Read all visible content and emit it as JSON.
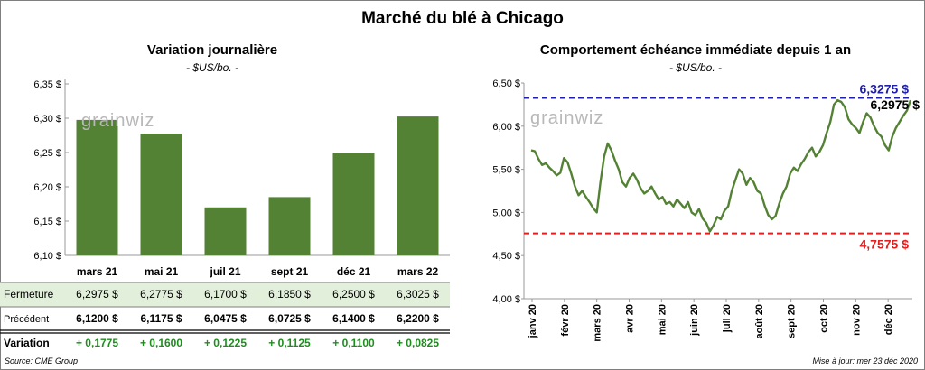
{
  "title": "Marché du blé à Chicago",
  "source": "Source: CME Group",
  "updated": "Mise à jour: mer 23 déc 2020",
  "watermark": "grainwiz",
  "chart_data": [
    {
      "type": "bar",
      "title": "Variation journalière",
      "unit": "- $US/bo. -",
      "categories": [
        "mars 21",
        "mai 21",
        "juil 21",
        "sept 21",
        "déc 21",
        "mars 22"
      ],
      "values": [
        6.2975,
        6.2775,
        6.17,
        6.185,
        6.25,
        6.3025
      ],
      "ylim": [
        6.1,
        6.35
      ],
      "yticks": [
        "6,10 $",
        "6,15 $",
        "6,20 $",
        "6,25 $",
        "6,30 $",
        "6,35 $"
      ],
      "bar_color": "#548235",
      "table": {
        "rows": [
          {
            "label": "Fermeture",
            "cells": [
              "6,2975  $",
              "6,2775  $",
              "6,1700  $",
              "6,1850  $",
              "6,2500  $",
              "6,3025  $"
            ]
          },
          {
            "label": "Précédent",
            "cells": [
              "6,1200  $",
              "6,1175  $",
              "6,0475  $",
              "6,0725  $",
              "6,1400  $",
              "6,2200  $"
            ]
          },
          {
            "label": "Variation",
            "cells": [
              "+ 0,1775",
              "+ 0,1600",
              "+ 0,1225",
              "+ 0,1125",
              "+ 0,1100",
              "+ 0,0825"
            ]
          }
        ],
        "highlight_color": "#e2efda",
        "change_color": "#1e8c1e"
      }
    },
    {
      "type": "line",
      "title": "Comportement  échéance immédiate depuis 1 an",
      "unit": "- $US/bo. -",
      "ylim": [
        4.0,
        6.5
      ],
      "yticks": [
        "4,00 $",
        "4,50 $",
        "5,00 $",
        "5,50 $",
        "6,00 $",
        "6,50 $"
      ],
      "xticks": [
        "janv 20",
        "févr 20",
        "mars 20",
        "avr 20",
        "mai 20",
        "juin 20",
        "juil 20",
        "août 20",
        "sept 20",
        "oct 20",
        "nov 20",
        "déc 20"
      ],
      "line_color": "#548235",
      "high": {
        "value": 6.3275,
        "label": "6,3275 $",
        "color": "#1f1fa8"
      },
      "low": {
        "value": 4.7575,
        "label": "4,7575 $",
        "color": "#e02020"
      },
      "last_label": "6,2975 $",
      "series": [
        {
          "values": [
            5.72,
            5.71,
            5.62,
            5.55,
            5.57,
            5.52,
            5.48,
            5.43,
            5.46,
            5.63,
            5.58,
            5.45,
            5.3,
            5.2,
            5.25,
            5.18,
            5.12,
            5.05,
            5.0,
            5.35,
            5.65,
            5.8,
            5.72,
            5.6,
            5.5,
            5.35,
            5.3,
            5.4,
            5.45,
            5.38,
            5.28,
            5.22,
            5.25,
            5.3,
            5.22,
            5.15,
            5.18,
            5.1,
            5.12,
            5.07,
            5.15,
            5.1,
            5.05,
            5.12,
            5.0,
            4.97,
            5.04,
            4.93,
            4.88,
            4.78,
            4.85,
            4.95,
            4.92,
            5.02,
            5.07,
            5.25,
            5.38,
            5.5,
            5.45,
            5.32,
            5.4,
            5.35,
            5.25,
            5.22,
            5.08,
            4.97,
            4.92,
            4.96,
            5.1,
            5.22,
            5.3,
            5.45,
            5.52,
            5.48,
            5.56,
            5.62,
            5.7,
            5.75,
            5.65,
            5.7,
            5.78,
            5.92,
            6.05,
            6.25,
            6.3,
            6.28,
            6.22,
            6.08,
            6.02,
            5.98,
            5.92,
            6.05,
            6.15,
            6.1,
            6.0,
            5.92,
            5.88,
            5.78,
            5.72,
            5.88,
            5.98,
            6.05,
            6.12,
            6.18,
            6.3
          ]
        }
      ]
    }
  ]
}
